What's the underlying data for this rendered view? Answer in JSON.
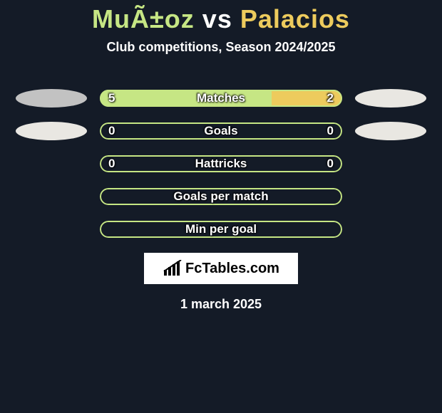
{
  "background_color": "#141b27",
  "title": {
    "player_a": "MuÃ±oz",
    "vs": "vs",
    "player_b": "Palacios",
    "color_a": "#c6e684",
    "color_vs": "#ffffff",
    "color_b": "#edcb5d",
    "fontsize": 36
  },
  "subtitle": {
    "text": "Club competitions, Season 2024/2025",
    "color": "#ffffff",
    "fontsize": 18
  },
  "rows": [
    {
      "label": "Matches",
      "value_a": "5",
      "value_b": "2",
      "fill_a_pct": 71,
      "fill_b_pct": 29,
      "color_a": "#c6e684",
      "color_b": "#edcb5d",
      "show_left_ellipse": true,
      "left_ellipse_color": "#c2c2c2",
      "show_right_ellipse": true,
      "right_ellipse_color": "#e9e7e2",
      "border_color": "#c6e684"
    },
    {
      "label": "Goals",
      "value_a": "0",
      "value_b": "0",
      "fill_a_pct": 0,
      "fill_b_pct": 0,
      "color_a": "#c6e684",
      "color_b": "#edcb5d",
      "show_left_ellipse": true,
      "left_ellipse_color": "#e9e7e2",
      "show_right_ellipse": true,
      "right_ellipse_color": "#e9e7e2",
      "border_color": "#c6e684"
    },
    {
      "label": "Hattricks",
      "value_a": "0",
      "value_b": "0",
      "fill_a_pct": 0,
      "fill_b_pct": 0,
      "color_a": "#c6e684",
      "color_b": "#edcb5d",
      "show_left_ellipse": false,
      "show_right_ellipse": false,
      "border_color": "#c6e684"
    },
    {
      "label": "Goals per match",
      "value_a": "",
      "value_b": "",
      "fill_a_pct": 0,
      "fill_b_pct": 0,
      "color_a": "#c6e684",
      "color_b": "#edcb5d",
      "show_left_ellipse": false,
      "show_right_ellipse": false,
      "border_color": "#c6e684"
    },
    {
      "label": "Min per goal",
      "value_a": "",
      "value_b": "",
      "fill_a_pct": 0,
      "fill_b_pct": 0,
      "color_a": "#c6e684",
      "color_b": "#edcb5d",
      "show_left_ellipse": false,
      "show_right_ellipse": false,
      "border_color": "#c6e684"
    }
  ],
  "logo": {
    "text": "FcTables.com",
    "box_bg": "#ffffff",
    "text_color": "#000000",
    "chart_color": "#000000"
  },
  "footer_date": {
    "text": "1 march 2025",
    "color": "#ffffff",
    "fontsize": 18
  }
}
